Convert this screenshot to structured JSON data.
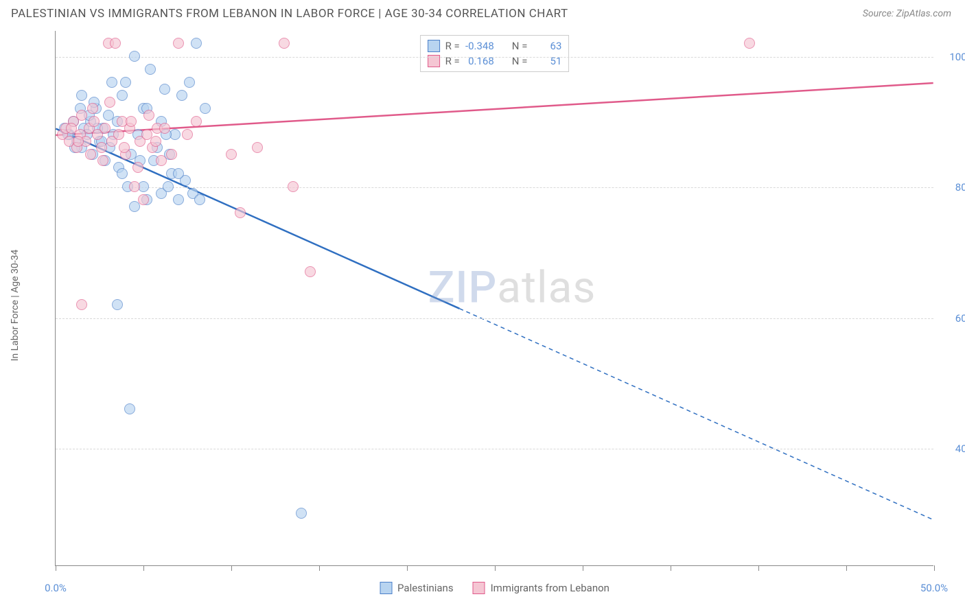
{
  "header": {
    "title": "PALESTINIAN VS IMMIGRANTS FROM LEBANON IN LABOR FORCE | AGE 30-34 CORRELATION CHART",
    "source": "Source: ZipAtlas.com"
  },
  "watermark": {
    "zip": "ZIP",
    "rest": "atlas"
  },
  "chart": {
    "type": "scatter",
    "ylabel": "In Labor Force | Age 30-34",
    "xlim": [
      0,
      50
    ],
    "ylim": [
      22,
      104
    ],
    "background_color": "#ffffff",
    "grid_color": "#d8d8d8",
    "axis_color": "#888888",
    "tick_color": "#5b8fd6",
    "xticks": [
      0,
      5,
      10,
      15,
      20,
      25,
      30,
      35,
      40,
      45,
      50
    ],
    "xtick_labels": [
      {
        "pos": 0,
        "label": "0.0%"
      },
      {
        "pos": 50,
        "label": "50.0%"
      }
    ],
    "yticks": [
      {
        "pos": 40,
        "label": "40.0%"
      },
      {
        "pos": 60,
        "label": "60.0%"
      },
      {
        "pos": 80,
        "label": "80.0%"
      },
      {
        "pos": 100,
        "label": "100.0%"
      }
    ],
    "series": [
      {
        "name": "Palestinians",
        "legend_label": "Palestinians",
        "fill": "#b8d4f0",
        "stroke": "#4a7fc9",
        "line_color": "#2f6fc1",
        "R": "-0.348",
        "N": "63",
        "trend": {
          "x1": 0,
          "y1": 89,
          "x2": 50,
          "y2": 29,
          "solid_until_x": 23
        },
        "points": [
          [
            0.5,
            89
          ],
          [
            0.8,
            88
          ],
          [
            1.0,
            90
          ],
          [
            1.2,
            87
          ],
          [
            1.4,
            92
          ],
          [
            1.5,
            86
          ],
          [
            1.6,
            89
          ],
          [
            1.8,
            88
          ],
          [
            2.0,
            90
          ],
          [
            2.1,
            85
          ],
          [
            2.3,
            92
          ],
          [
            2.5,
            87
          ],
          [
            2.7,
            89
          ],
          [
            2.8,
            84
          ],
          [
            3.0,
            91
          ],
          [
            3.1,
            86
          ],
          [
            3.3,
            88
          ],
          [
            3.5,
            90
          ],
          [
            3.6,
            83
          ],
          [
            3.8,
            94
          ],
          [
            4.0,
            96
          ],
          [
            4.1,
            80
          ],
          [
            4.3,
            85
          ],
          [
            4.5,
            100
          ],
          [
            4.7,
            88
          ],
          [
            5.0,
            92
          ],
          [
            5.2,
            78
          ],
          [
            5.4,
            98
          ],
          [
            5.6,
            84
          ],
          [
            5.8,
            86
          ],
          [
            6.0,
            79
          ],
          [
            6.2,
            95
          ],
          [
            6.4,
            80
          ],
          [
            6.6,
            82
          ],
          [
            6.8,
            88
          ],
          [
            7.0,
            78
          ],
          [
            7.2,
            94
          ],
          [
            7.4,
            81
          ],
          [
            7.6,
            96
          ],
          [
            7.8,
            79
          ],
          [
            8.0,
            102
          ],
          [
            8.2,
            78
          ],
          [
            8.5,
            92
          ],
          [
            3.5,
            62
          ],
          [
            4.2,
            46
          ],
          [
            5.0,
            80
          ],
          [
            14.0,
            30
          ],
          [
            6.0,
            90
          ],
          [
            6.5,
            85
          ],
          [
            7.0,
            82
          ],
          [
            1.5,
            94
          ],
          [
            2.2,
            93
          ],
          [
            3.8,
            82
          ],
          [
            4.5,
            77
          ],
          [
            5.2,
            92
          ],
          [
            6.3,
            88
          ],
          [
            4.8,
            84
          ],
          [
            3.2,
            96
          ],
          [
            2.6,
            87
          ],
          [
            1.9,
            91
          ],
          [
            0.7,
            88
          ],
          [
            1.1,
            86
          ],
          [
            2.4,
            89
          ]
        ]
      },
      {
        "name": "Immigrants from Lebanon",
        "legend_label": "Immigrants from Lebanon",
        "fill": "#f5c6d3",
        "stroke": "#e05a8a",
        "line_color": "#e05a8a",
        "R": "0.168",
        "N": "51",
        "trend": {
          "x1": 0,
          "y1": 88,
          "x2": 50,
          "y2": 96,
          "solid_until_x": 50
        },
        "points": [
          [
            0.4,
            88
          ],
          [
            0.6,
            89
          ],
          [
            0.8,
            87
          ],
          [
            1.0,
            90
          ],
          [
            1.2,
            86
          ],
          [
            1.4,
            88
          ],
          [
            1.5,
            91
          ],
          [
            1.7,
            87
          ],
          [
            1.9,
            89
          ],
          [
            2.0,
            85
          ],
          [
            2.2,
            90
          ],
          [
            2.4,
            88
          ],
          [
            2.6,
            86
          ],
          [
            2.8,
            89
          ],
          [
            3.0,
            102
          ],
          [
            3.2,
            87
          ],
          [
            3.4,
            102
          ],
          [
            3.6,
            88
          ],
          [
            3.8,
            90
          ],
          [
            4.0,
            85
          ],
          [
            4.2,
            89
          ],
          [
            4.5,
            80
          ],
          [
            4.8,
            87
          ],
          [
            5.0,
            78
          ],
          [
            5.2,
            88
          ],
          [
            5.5,
            86
          ],
          [
            5.8,
            89
          ],
          [
            6.0,
            84
          ],
          [
            1.5,
            62
          ],
          [
            7.0,
            102
          ],
          [
            7.5,
            88
          ],
          [
            8.0,
            90
          ],
          [
            10.0,
            85
          ],
          [
            10.5,
            76
          ],
          [
            11.5,
            86
          ],
          [
            13.0,
            102
          ],
          [
            13.5,
            80
          ],
          [
            14.5,
            67
          ],
          [
            39.5,
            102
          ],
          [
            2.1,
            92
          ],
          [
            2.7,
            84
          ],
          [
            3.1,
            93
          ],
          [
            3.9,
            86
          ],
          [
            4.3,
            90
          ],
          [
            4.7,
            83
          ],
          [
            5.3,
            91
          ],
          [
            5.7,
            87
          ],
          [
            6.2,
            89
          ],
          [
            6.6,
            85
          ],
          [
            0.9,
            89
          ],
          [
            1.3,
            87
          ]
        ]
      }
    ],
    "legend_top": {
      "r_label": "R =",
      "n_label": "N ="
    }
  }
}
